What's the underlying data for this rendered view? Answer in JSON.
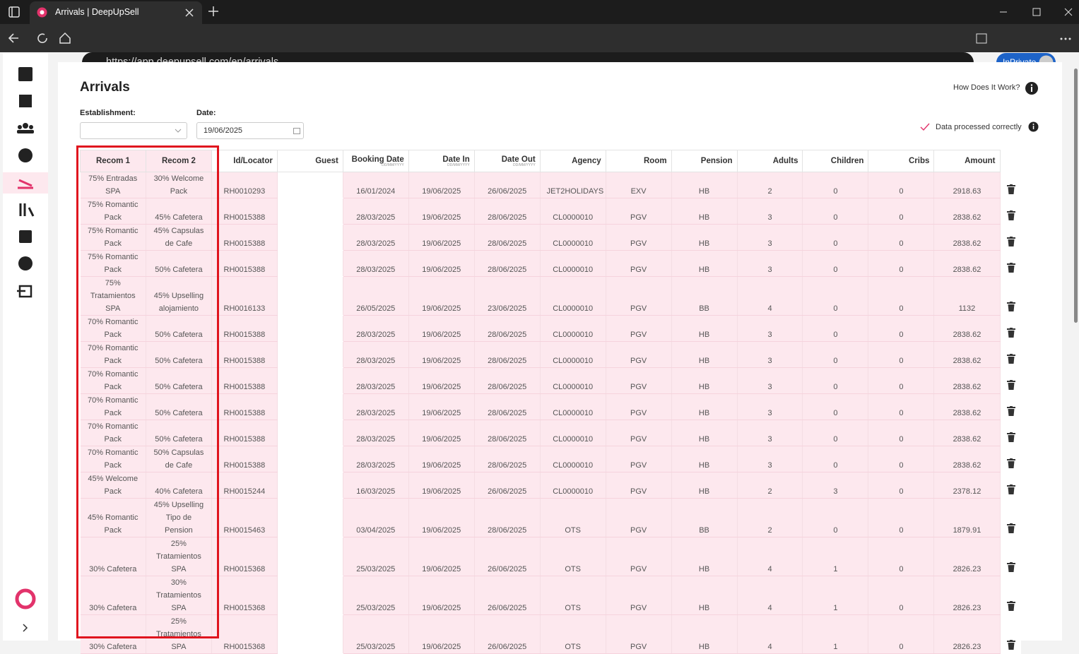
{
  "browser": {
    "tab_title": "Arrivals | DeepUpSell",
    "url": "https://app.deepupsell.com/en/arrivals",
    "profile": "InPrivate"
  },
  "page": {
    "title": "Arrivals",
    "help": "How Does It Work?",
    "establishment_label": "Establishment:",
    "date_label": "Date:",
    "date_value": "19/06/2025",
    "status": "Data processed correctly"
  },
  "table": {
    "columns": [
      {
        "label": "Recom 1"
      },
      {
        "label": "Recom 2"
      },
      {
        "label": "Id/Locator"
      },
      {
        "label": "Guest"
      },
      {
        "label": "Booking Date",
        "sub": "DD/MM/YYYY"
      },
      {
        "label": "Date In",
        "sub": "DD/MM/YYYY"
      },
      {
        "label": "Date Out",
        "sub": "DD/MM/YYYY"
      },
      {
        "label": "Agency"
      },
      {
        "label": "Room"
      },
      {
        "label": "Pension"
      },
      {
        "label": "Adults"
      },
      {
        "label": "Children"
      },
      {
        "label": "Cribs"
      },
      {
        "label": "Amount"
      }
    ],
    "rows": [
      [
        "75% Entradas SPA",
        "30% Welcome Pack",
        "RH0010293",
        null,
        "16/01/2024",
        "19/06/2025",
        "26/06/2025",
        "JET2HOLIDAYS",
        "EXV",
        "HB",
        2,
        0,
        0,
        2918.63
      ],
      [
        "75% Romantic Pack",
        "45% Cafetera",
        "RH0015388",
        null,
        "28/03/2025",
        "19/06/2025",
        "28/06/2025",
        "CL0000010",
        "PGV",
        "HB",
        3,
        0,
        0,
        2838.62
      ],
      [
        "75% Romantic Pack",
        "45% Capsulas de Cafe",
        "RH0015388",
        null,
        "28/03/2025",
        "19/06/2025",
        "28/06/2025",
        "CL0000010",
        "PGV",
        "HB",
        3,
        0,
        0,
        2838.62
      ],
      [
        "75% Romantic Pack",
        "50% Cafetera",
        "RH0015388",
        null,
        "28/03/2025",
        "19/06/2025",
        "28/06/2025",
        "CL0000010",
        "PGV",
        "HB",
        3,
        0,
        0,
        2838.62
      ],
      [
        "75% Tratamientos SPA",
        "45% Upselling alojamiento",
        "RH0016133",
        null,
        "26/05/2025",
        "19/06/2025",
        "23/06/2025",
        "CL0000010",
        "PGV",
        "BB",
        4,
        0,
        0,
        1132
      ],
      [
        "70% Romantic Pack",
        "50% Cafetera",
        "RH0015388",
        null,
        "28/03/2025",
        "19/06/2025",
        "28/06/2025",
        "CL0000010",
        "PGV",
        "HB",
        3,
        0,
        0,
        2838.62
      ],
      [
        "70% Romantic Pack",
        "50% Cafetera",
        "RH0015388",
        null,
        "28/03/2025",
        "19/06/2025",
        "28/06/2025",
        "CL0000010",
        "PGV",
        "HB",
        3,
        0,
        0,
        2838.62
      ],
      [
        "70% Romantic Pack",
        "50% Cafetera",
        "RH0015388",
        null,
        "28/03/2025",
        "19/06/2025",
        "28/06/2025",
        "CL0000010",
        "PGV",
        "HB",
        3,
        0,
        0,
        2838.62
      ],
      [
        "70% Romantic Pack",
        "50% Cafetera",
        "RH0015388",
        null,
        "28/03/2025",
        "19/06/2025",
        "28/06/2025",
        "CL0000010",
        "PGV",
        "HB",
        3,
        0,
        0,
        2838.62
      ],
      [
        "70% Romantic Pack",
        "50% Cafetera",
        "RH0015388",
        null,
        "28/03/2025",
        "19/06/2025",
        "28/06/2025",
        "CL0000010",
        "PGV",
        "HB",
        3,
        0,
        0,
        2838.62
      ],
      [
        "70% Romantic Pack",
        "50% Capsulas de Cafe",
        "RH0015388",
        null,
        "28/03/2025",
        "19/06/2025",
        "28/06/2025",
        "CL0000010",
        "PGV",
        "HB",
        3,
        0,
        0,
        2838.62
      ],
      [
        "45% Welcome Pack",
        "40% Cafetera",
        "RH0015244",
        null,
        "16/03/2025",
        "19/06/2025",
        "26/06/2025",
        "CL0000010",
        "PGV",
        "HB",
        2,
        3,
        0,
        2378.12
      ],
      [
        "45% Romantic Pack",
        "45% Upselling Tipo de Pension",
        "RH0015463",
        null,
        "03/04/2025",
        "19/06/2025",
        "28/06/2025",
        "OTS",
        "PGV",
        "BB",
        2,
        0,
        0,
        1879.91
      ],
      [
        "30% Cafetera",
        "25% Tratamientos SPA",
        "RH0015368",
        null,
        "25/03/2025",
        "19/06/2025",
        "26/06/2025",
        "OTS",
        "PGV",
        "HB",
        4,
        1,
        0,
        2826.23
      ],
      [
        "30% Cafetera",
        "30% Tratamientos SPA",
        "RH0015368",
        null,
        "25/03/2025",
        "19/06/2025",
        "26/06/2025",
        "OTS",
        "PGV",
        "HB",
        4,
        1,
        0,
        2826.23
      ],
      [
        "30% Cafetera",
        "25% Tratamientos SPA",
        "RH0015368",
        null,
        "25/03/2025",
        "19/06/2025",
        "26/06/2025",
        "OTS",
        "PGV",
        "HB",
        4,
        1,
        0,
        2826.23
      ]
    ]
  }
}
